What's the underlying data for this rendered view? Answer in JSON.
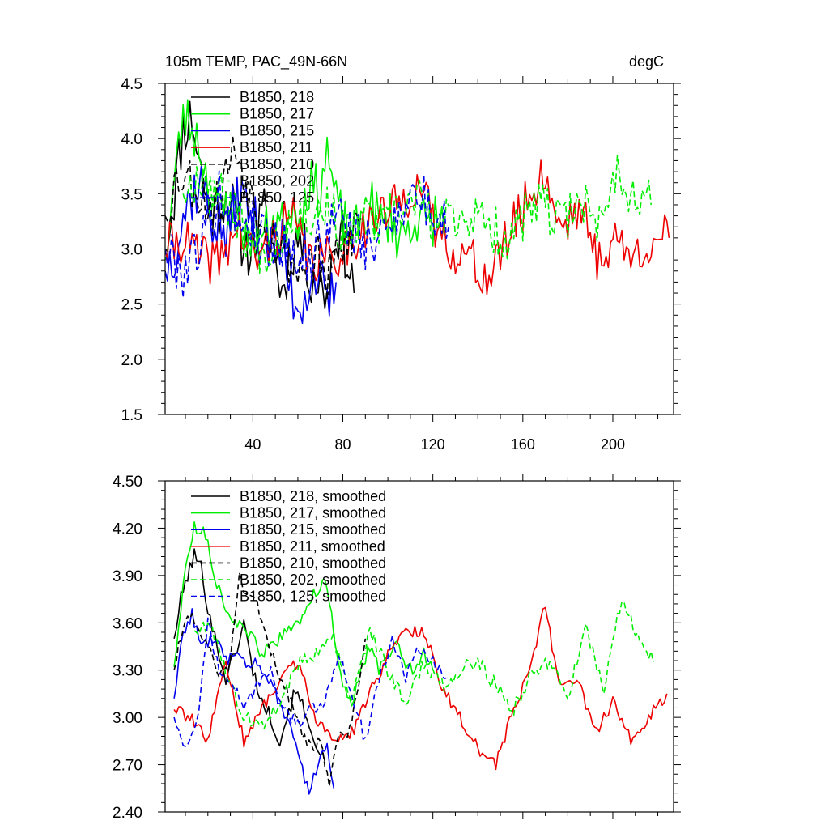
{
  "chart_data": [
    {
      "type": "line",
      "title": "105m TEMP, PAC_49N-66N",
      "units": "degC",
      "xlim": [
        1,
        227
      ],
      "ylim": [
        1.5,
        4.5
      ],
      "xticks": [
        40,
        80,
        120,
        160,
        200
      ],
      "yticks": [
        1.5,
        2.0,
        2.5,
        3.0,
        3.5,
        4.0,
        4.5
      ],
      "ytick_labels": [
        "1.5",
        "2.0",
        "2.5",
        "3.0",
        "3.5",
        "4.0",
        "4.5"
      ],
      "legend": "top-left",
      "series": [
        {
          "name": "B1850, 218",
          "color": "#000000",
          "dash": "solid",
          "seed": 11,
          "amp": 0.28,
          "x": [
            1,
            5,
            9,
            13,
            17,
            21,
            25,
            29,
            33,
            37,
            41,
            45,
            49,
            53,
            57,
            61,
            65,
            69,
            73,
            77,
            81,
            85
          ],
          "y": [
            3.0,
            3.5,
            4.1,
            4.2,
            3.7,
            3.3,
            3.4,
            3.5,
            3.2,
            3.0,
            3.1,
            3.3,
            3.0,
            2.6,
            3.0,
            3.1,
            2.8,
            2.7,
            2.6,
            3.2,
            3.0,
            2.6
          ]
        },
        {
          "name": "B1850, 217",
          "color": "#00ee00",
          "dash": "solid",
          "seed": 23,
          "amp": 0.25,
          "x": [
            1,
            5,
            9,
            13,
            17,
            21,
            25,
            29,
            33,
            37,
            41,
            45,
            49,
            53,
            57,
            61,
            65,
            69,
            73,
            77,
            81,
            85,
            89,
            93,
            97,
            101,
            105,
            109,
            113,
            117,
            121,
            125
          ],
          "y": [
            2.9,
            3.6,
            4.2,
            4.1,
            3.9,
            3.5,
            3.3,
            3.4,
            3.3,
            3.1,
            3.2,
            3.1,
            3.3,
            3.2,
            3.4,
            3.3,
            3.6,
            3.5,
            3.9,
            3.4,
            3.2,
            3.1,
            3.3,
            3.4,
            3.2,
            3.3,
            3.1,
            3.2,
            3.3,
            3.2,
            3.3,
            3.2
          ]
        },
        {
          "name": "B1850, 215",
          "color": "#0000ee",
          "dash": "solid",
          "seed": 37,
          "amp": 0.28,
          "x": [
            1,
            5,
            9,
            13,
            17,
            21,
            25,
            29,
            33,
            37,
            41,
            45,
            49,
            53,
            57,
            61,
            65,
            69,
            73,
            77
          ],
          "y": [
            2.8,
            3.0,
            3.3,
            3.5,
            3.6,
            3.3,
            3.2,
            3.1,
            3.5,
            3.4,
            3.2,
            3.1,
            3.0,
            3.0,
            2.6,
            2.5,
            2.7,
            2.8,
            2.4,
            2.7
          ]
        },
        {
          "name": "B1850, 211",
          "color": "#ee0000",
          "dash": "solid",
          "seed": 41,
          "amp": 0.22,
          "x": [
            1,
            9,
            17,
            25,
            33,
            41,
            49,
            57,
            65,
            73,
            81,
            89,
            97,
            105,
            113,
            121,
            129,
            137,
            145,
            153,
            161,
            169,
            177,
            185,
            193,
            201,
            209,
            217,
            225
          ],
          "y": [
            3.0,
            3.1,
            2.9,
            2.9,
            3.2,
            2.9,
            3.1,
            3.3,
            2.9,
            2.9,
            3.0,
            3.2,
            3.3,
            3.4,
            3.6,
            3.2,
            3.0,
            2.9,
            2.7,
            3.1,
            3.4,
            3.7,
            3.2,
            3.4,
            2.9,
            3.1,
            2.9,
            3.1,
            3.1
          ]
        },
        {
          "name": "B1850, 210",
          "color": "#000000",
          "dash": "dashed",
          "seed": 53,
          "amp": 0.25,
          "x": [
            1,
            5,
            9,
            13,
            17,
            21,
            25,
            29,
            33,
            37,
            41,
            45,
            49,
            53,
            57,
            61,
            65,
            69,
            73,
            77,
            81,
            85,
            89
          ],
          "y": [
            3.3,
            3.6,
            3.7,
            3.6,
            3.5,
            3.4,
            3.4,
            3.8,
            3.9,
            3.6,
            3.4,
            3.3,
            3.1,
            3.0,
            2.9,
            2.8,
            2.9,
            2.9,
            2.7,
            2.9,
            3.0,
            3.2,
            3.3
          ]
        },
        {
          "name": "B1850, 202",
          "color": "#00ee00",
          "dash": "dashed",
          "seed": 67,
          "amp": 0.22,
          "x": [
            9,
            17,
            25,
            33,
            41,
            49,
            57,
            65,
            73,
            81,
            89,
            97,
            105,
            113,
            121,
            129,
            137,
            145,
            153,
            161,
            169,
            177,
            185,
            193,
            201,
            209,
            217
          ],
          "y": [
            3.5,
            3.7,
            3.5,
            3.3,
            3.0,
            3.0,
            3.3,
            3.3,
            3.4,
            3.1,
            3.3,
            3.2,
            3.3,
            3.5,
            3.2,
            3.3,
            3.3,
            3.2,
            3.1,
            3.3,
            3.4,
            3.2,
            3.5,
            3.2,
            3.7,
            3.5,
            3.4
          ]
        },
        {
          "name": "B1850, 125",
          "color": "#0000ee",
          "dash": "dashed",
          "seed": 79,
          "amp": 0.25,
          "x": [
            1,
            9,
            17,
            25,
            33,
            41,
            49,
            57,
            65,
            73,
            81,
            89,
            97,
            105,
            113,
            121,
            127
          ],
          "y": [
            3.0,
            2.8,
            3.1,
            3.5,
            3.3,
            3.2,
            3.1,
            3.0,
            2.9,
            3.2,
            3.3,
            3.0,
            3.1,
            3.4,
            3.5,
            3.3,
            3.2
          ]
        }
      ]
    },
    {
      "type": "line",
      "title": "",
      "xlim": [
        1,
        227
      ],
      "ylim": [
        2.4,
        4.5
      ],
      "xticks": [
        40,
        80,
        120,
        160,
        200
      ],
      "yticks": [
        2.4,
        2.7,
        3.0,
        3.3,
        3.6,
        3.9,
        4.2,
        4.5
      ],
      "ytick_labels": [
        "2.40",
        "2.70",
        "3.00",
        "3.30",
        "3.60",
        "3.90",
        "4.20",
        "4.50"
      ],
      "legend": "top-left",
      "series": [
        {
          "name": "B1850, 218, smoothed",
          "color": "#000000",
          "dash": "solid",
          "seed": 101,
          "amp": 0.05,
          "x": [
            5,
            8,
            11,
            14,
            17,
            20,
            24,
            28,
            32,
            36,
            40,
            44,
            48,
            52,
            56,
            60,
            64,
            68,
            72
          ],
          "y": [
            3.5,
            3.75,
            3.9,
            4.03,
            3.95,
            3.7,
            3.45,
            3.25,
            3.4,
            3.6,
            3.3,
            3.1,
            3.0,
            2.85,
            3.05,
            3.2,
            2.95,
            2.85,
            2.72
          ]
        },
        {
          "name": "B1850, 217, smoothed",
          "color": "#00ee00",
          "dash": "solid",
          "seed": 113,
          "amp": 0.04,
          "x": [
            5,
            8,
            11,
            14,
            17,
            20,
            24,
            28,
            32,
            36,
            40,
            44,
            48,
            52,
            56,
            60,
            64,
            68,
            72,
            76,
            80,
            84,
            88,
            92,
            96,
            100,
            104,
            108,
            112,
            116,
            120
          ],
          "y": [
            3.32,
            3.7,
            4.05,
            4.2,
            4.2,
            4.1,
            3.85,
            3.7,
            3.6,
            3.55,
            3.5,
            3.4,
            3.45,
            3.5,
            3.55,
            3.6,
            3.7,
            3.8,
            3.88,
            3.55,
            3.2,
            3.05,
            3.3,
            3.45,
            3.3,
            3.4,
            3.5,
            3.35,
            3.3,
            3.4,
            3.3
          ]
        },
        {
          "name": "B1850, 215, smoothed",
          "color": "#0000ee",
          "dash": "solid",
          "seed": 127,
          "amp": 0.04,
          "x": [
            5,
            9,
            13,
            17,
            21,
            25,
            29,
            33,
            37,
            41,
            45,
            49,
            53,
            57,
            61,
            65,
            69,
            73,
            76
          ],
          "y": [
            3.12,
            3.55,
            3.65,
            3.45,
            3.5,
            3.5,
            3.35,
            3.45,
            3.3,
            3.35,
            3.3,
            3.2,
            3.05,
            2.95,
            2.7,
            2.52,
            2.72,
            2.8,
            2.55
          ]
        },
        {
          "name": "B1850, 211, smoothed",
          "color": "#ee0000",
          "dash": "solid",
          "seed": 139,
          "amp": 0.04,
          "x": [
            5,
            12,
            20,
            28,
            36,
            44,
            52,
            60,
            68,
            76,
            84,
            92,
            100,
            108,
            116,
            124,
            132,
            140,
            148,
            156,
            164,
            170,
            176,
            184,
            192,
            200,
            208,
            216,
            224
          ],
          "y": [
            3.05,
            3.0,
            2.85,
            3.35,
            2.85,
            3.05,
            3.25,
            3.35,
            3.0,
            2.85,
            2.9,
            3.15,
            3.4,
            3.55,
            3.55,
            3.2,
            3.0,
            2.8,
            2.7,
            3.05,
            3.35,
            3.72,
            3.2,
            3.25,
            2.9,
            3.1,
            2.85,
            3.0,
            3.15
          ]
        },
        {
          "name": "B1850, 210, smoothed",
          "color": "#000000",
          "dash": "dashed",
          "seed": 151,
          "amp": 0.04,
          "x": [
            5,
            10,
            15,
            20,
            25,
            30,
            34,
            38,
            42,
            46,
            50,
            54,
            58,
            62,
            66,
            70,
            74,
            78,
            82,
            86,
            90
          ],
          "y": [
            3.3,
            3.65,
            3.6,
            3.45,
            3.25,
            3.35,
            3.9,
            3.75,
            3.7,
            3.5,
            3.35,
            3.2,
            3.05,
            2.9,
            2.8,
            2.85,
            2.6,
            2.88,
            2.9,
            3.1,
            3.5
          ]
        },
        {
          "name": "B1850, 202, smoothed",
          "color": "#00ee00",
          "dash": "dashed",
          "seed": 163,
          "amp": 0.05,
          "x": [
            14,
            20,
            28,
            36,
            44,
            52,
            60,
            68,
            76,
            84,
            92,
            100,
            108,
            116,
            124,
            132,
            140,
            148,
            156,
            164,
            172,
            180,
            188,
            196,
            204,
            212,
            218
          ],
          "y": [
            3.55,
            3.6,
            3.3,
            3.0,
            2.95,
            3.1,
            3.35,
            3.4,
            3.5,
            3.1,
            3.55,
            3.3,
            3.1,
            3.35,
            3.2,
            3.3,
            3.35,
            3.2,
            3.05,
            3.3,
            3.35,
            3.15,
            3.55,
            3.2,
            3.75,
            3.5,
            3.35
          ]
        },
        {
          "name": "B1850, 125, smoothed",
          "color": "#0000ee",
          "dash": "dashed",
          "seed": 179,
          "amp": 0.04,
          "x": [
            5,
            10,
            15,
            20,
            25,
            30,
            36,
            42,
            48,
            54,
            60,
            66,
            72,
            78,
            84,
            90,
            96,
            102,
            108,
            114,
            120,
            126
          ],
          "y": [
            3.0,
            2.8,
            2.95,
            3.6,
            3.3,
            3.25,
            3.05,
            3.2,
            3.3,
            3.05,
            2.95,
            3.05,
            3.1,
            3.4,
            3.15,
            2.85,
            3.25,
            3.5,
            3.25,
            3.45,
            3.35,
            3.25
          ]
        }
      ]
    }
  ]
}
